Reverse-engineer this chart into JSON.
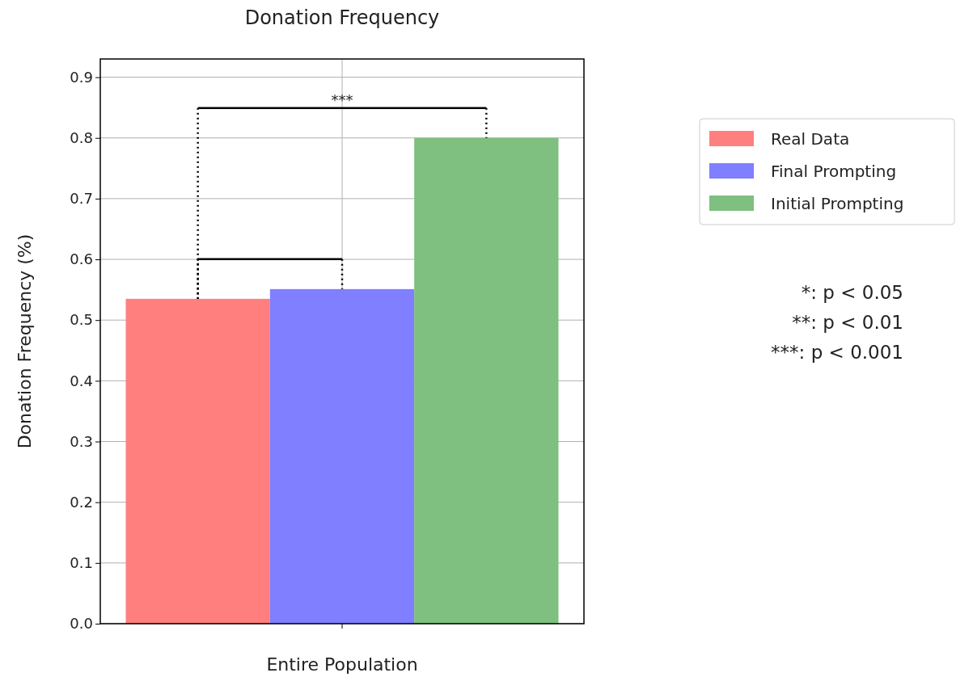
{
  "chart_data": {
    "type": "bar",
    "title": "Donation Frequency",
    "ylabel": "Donation Frequency  (%)",
    "categories": [
      "Entire Population"
    ],
    "series": [
      {
        "name": "Real Data",
        "color": "#ff7f7f",
        "values": [
          0.535
        ]
      },
      {
        "name": "Final Prompting",
        "color": "#7f7fff",
        "values": [
          0.551
        ]
      },
      {
        "name": "Initial Prompting",
        "color": "#7fbf7f",
        "values": [
          0.8
        ]
      }
    ],
    "ylim": [
      0,
      0.93
    ],
    "yticks": [
      {
        "value": 0,
        "label": "0.0"
      },
      0.1,
      0.2,
      0.3,
      0.4,
      0.5,
      0.6,
      0.7,
      0.8,
      0.9
    ],
    "grid": true,
    "legend": "right",
    "annotations": [
      "***",
      "*: p < 0.05",
      "**: p < 0.01",
      "***: p < 0.001"
    ]
  }
}
